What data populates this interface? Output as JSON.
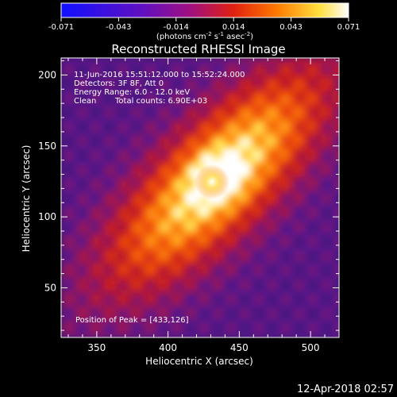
{
  "chart_data": {
    "type": "heatmap",
    "title": "Reconstructed RHESSI Image",
    "xlabel": "Heliocentric X (arcsec)",
    "ylabel": "Heliocentric Y (arcsec)",
    "xlim": [
      325,
      520
    ],
    "ylim": [
      15,
      212
    ],
    "xticks": [
      350,
      400,
      450,
      500
    ],
    "yticks": [
      50,
      100,
      150,
      200
    ],
    "colorbar": {
      "ticks": [
        "-0.071",
        "-0.043",
        "-0.014",
        "0.014",
        "0.043",
        "0.071"
      ],
      "range": [
        -0.071,
        0.071
      ],
      "unit_text": [
        "(photons cm",
        "-2",
        " s",
        "-1",
        " asec",
        "-2",
        ")"
      ]
    },
    "info": {
      "time": "11-Jun-2016 15:51:12.000 to 15:52:24.000",
      "detectors": "Detectors: 3F 8F, Att 0",
      "energy": "Energy Range: 6.0 - 12.0 keV",
      "clean": "Clean",
      "counts": "Total counts: 6.90E+03"
    },
    "peak_label": "Position of Peak = [433,126]",
    "peak": [
      433,
      126
    ],
    "colormap": "red-temperature (blue-purple-red-orange-yellow-white)"
  },
  "footer": {
    "date": "12-Apr-2018 02:57"
  }
}
